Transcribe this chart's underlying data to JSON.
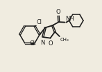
{
  "background_color": "#f0ece0",
  "line_color": "#1a1a1a",
  "line_width": 1.3,
  "xlim": [
    0.0,
    1.0
  ],
  "ylim": [
    0.0,
    1.0
  ]
}
